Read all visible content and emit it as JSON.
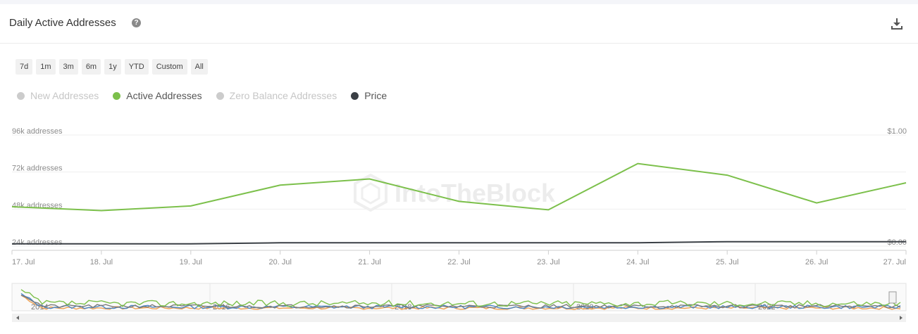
{
  "header": {
    "title": "Daily Active Addresses",
    "help_icon": "question-circle-icon",
    "download_icon": "download-icon"
  },
  "ranges": [
    "7d",
    "1m",
    "3m",
    "6m",
    "1y",
    "YTD",
    "Custom",
    "All"
  ],
  "legend": [
    {
      "label": "New Addresses",
      "color": "#cccccc",
      "enabled": false
    },
    {
      "label": "Active Addresses",
      "color": "#7cc04b",
      "enabled": true
    },
    {
      "label": "Zero Balance Addresses",
      "color": "#cccccc",
      "enabled": false
    },
    {
      "label": "Price",
      "color": "#3a3f45",
      "enabled": true
    }
  ],
  "watermark": "IntoTheBlock",
  "chart_data": {
    "type": "line",
    "categories": [
      "17. Jul",
      "18. Jul",
      "19. Jul",
      "20. Jul",
      "21. Jul",
      "22. Jul",
      "23. Jul",
      "24. Jul",
      "25. Jul",
      "26. Jul",
      "27. Jul"
    ],
    "y_ticks": [
      "24k addresses",
      "48k addresses",
      "72k addresses",
      "96k addresses"
    ],
    "y_tick_values": [
      24000,
      48000,
      72000,
      96000
    ],
    "y2_ticks": [
      "$0.00",
      "$1.00"
    ],
    "y2_tick_values": [
      0,
      1
    ],
    "ylim": [
      24000,
      96000
    ],
    "y2lim": [
      0,
      1
    ],
    "grid": true,
    "series": [
      {
        "name": "Active Addresses",
        "color": "#7cc04b",
        "axis": "left",
        "values": [
          49500,
          47000,
          50000,
          63500,
          67500,
          53000,
          47500,
          77500,
          70000,
          52000,
          65000
        ]
      },
      {
        "name": "Price",
        "color": "#3a3f45",
        "axis": "right",
        "values": [
          0.02,
          0.02,
          0.02,
          0.03,
          0.03,
          0.03,
          0.03,
          0.03,
          0.04,
          0.04,
          0.04
        ]
      }
    ],
    "navigator": {
      "year_labels": [
        "2014",
        "2016",
        "2018",
        "2020",
        "2022"
      ]
    }
  }
}
